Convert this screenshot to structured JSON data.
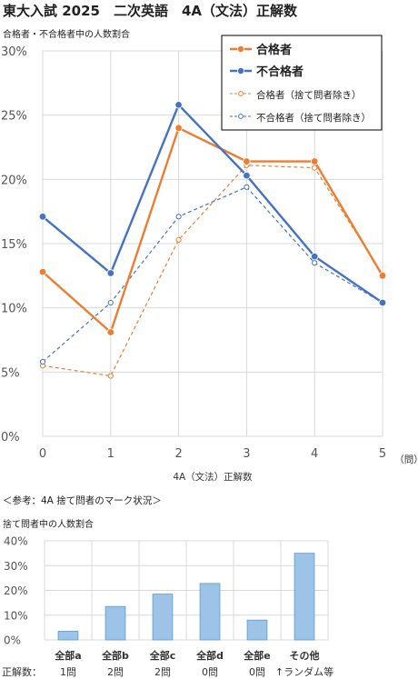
{
  "title": "東大入試 2025　二次英語　4A（文法）正解数",
  "reference_note": "＜参考：4A 捨て問者のマーク状況＞",
  "chart_data": [
    {
      "type": "line",
      "subtitle": "合格者・不合格者中の人数割合",
      "xlabel": "4A（文法）正解数",
      "x_unit": "（問）",
      "x": [
        0,
        1,
        2,
        3,
        4,
        5
      ],
      "ylim": [
        0,
        30
      ],
      "yticks": [
        "0%",
        "5%",
        "10%",
        "15%",
        "20%",
        "25%",
        "30%"
      ],
      "grid": true,
      "legend_position": "top-right",
      "series": [
        {
          "name": "合格者",
          "values": [
            12.8,
            8.1,
            24.0,
            21.4,
            21.4,
            12.5
          ],
          "color": "#ED7D31",
          "style": "solid"
        },
        {
          "name": "不合格者",
          "values": [
            17.1,
            12.7,
            25.8,
            20.3,
            14.0,
            10.4
          ],
          "color": "#4472C4",
          "style": "solid"
        },
        {
          "name": "合格者（捨て問者除き）",
          "values": [
            5.5,
            4.7,
            15.3,
            21.1,
            20.9,
            12.6
          ],
          "color": "#ED7D31",
          "style": "dashed"
        },
        {
          "name": "不合格者（捨て問者除き）",
          "values": [
            5.8,
            10.4,
            17.1,
            19.4,
            13.5,
            10.4
          ],
          "color": "#4472C4",
          "style": "dashed"
        }
      ]
    },
    {
      "type": "bar",
      "subtitle": "捨て問者中の人数割合",
      "categories": [
        "全部a",
        "全部b",
        "全部c",
        "全部d",
        "全部e",
        "その他"
      ],
      "values": [
        3.5,
        13.5,
        18.5,
        22.8,
        8.0,
        35.0
      ],
      "ylim": [
        0,
        40
      ],
      "yticks": [
        "0%",
        "10%",
        "20%",
        "30%",
        "40%"
      ],
      "row_label": "正解数：",
      "correct_counts": [
        "1問",
        "2問",
        "2問",
        "0問",
        "0問",
        "↑ランダム等"
      ],
      "bar_color": "#9DC3E6"
    }
  ]
}
